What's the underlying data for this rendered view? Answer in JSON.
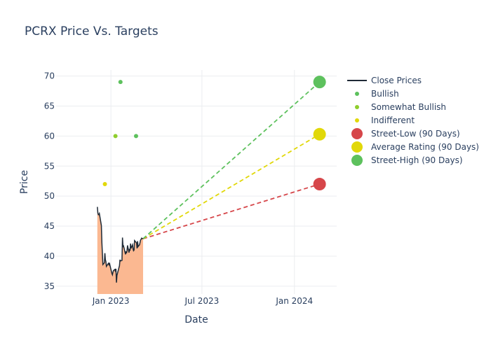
{
  "chart_data": {
    "type": "line",
    "title": "PCRX Price Vs. Targets",
    "xlabel": "Date",
    "ylabel": "Price",
    "xlim": [
      "2022-09-14",
      "2024-03-25"
    ],
    "ylim": [
      33.7,
      71.0
    ],
    "x_ticks": [
      {
        "date": "2023-01-01",
        "label": "Jan 2023"
      },
      {
        "date": "2023-07-01",
        "label": "Jul 2023"
      },
      {
        "date": "2024-01-01",
        "label": "Jan 2024"
      }
    ],
    "y_ticks": [
      35,
      40,
      45,
      50,
      55,
      60,
      65,
      70
    ],
    "grid": true,
    "legend_position": "right",
    "close_prices": {
      "name": "Close Prices",
      "line_color": "#1f2a36",
      "fill_color": "#fbb891",
      "dates": [
        "2022-12-05",
        "2022-12-06",
        "2022-12-07",
        "2022-12-08",
        "2022-12-09",
        "2022-12-12",
        "2022-12-13",
        "2022-12-14",
        "2022-12-15",
        "2022-12-16",
        "2022-12-19",
        "2022-12-20",
        "2022-12-21",
        "2022-12-22",
        "2022-12-23",
        "2022-12-27",
        "2022-12-28",
        "2022-12-29",
        "2022-12-30",
        "2023-01-03",
        "2023-01-04",
        "2023-01-05",
        "2023-01-06",
        "2023-01-09",
        "2023-01-10",
        "2023-01-11",
        "2023-01-12",
        "2023-01-13",
        "2023-01-17",
        "2023-01-18",
        "2023-01-19",
        "2023-01-20",
        "2023-01-23",
        "2023-01-24",
        "2023-01-25",
        "2023-01-26",
        "2023-01-27",
        "2023-01-30",
        "2023-01-31",
        "2023-02-01",
        "2023-02-02",
        "2023-02-03",
        "2023-02-06",
        "2023-02-07",
        "2023-02-08",
        "2023-02-09",
        "2023-02-10",
        "2023-02-13",
        "2023-02-14",
        "2023-02-15",
        "2023-02-16",
        "2023-02-17",
        "2023-02-21",
        "2023-02-22",
        "2023-02-23",
        "2023-02-24",
        "2023-02-27",
        "2023-02-28",
        "2023-03-01",
        "2023-03-02",
        "2023-03-03",
        "2023-03-06"
      ],
      "values": [
        48.2,
        47.2,
        46.9,
        46.9,
        47.1,
        45.6,
        45.1,
        42.3,
        40.5,
        38.6,
        38.9,
        40.5,
        39.4,
        39.1,
        38.3,
        38.8,
        38.6,
        38.9,
        38.5,
        37.1,
        36.9,
        37.3,
        37.6,
        37.8,
        37.4,
        37.9,
        35.6,
        36.8,
        38.1,
        38.4,
        39.4,
        39.2,
        39.3,
        43.1,
        41.6,
        41.7,
        41.4,
        40.3,
        40.8,
        40.5,
        40.9,
        41.8,
        40.6,
        41.2,
        40.9,
        42.1,
        41.3,
        41.9,
        41.2,
        40.9,
        41.0,
        42.6,
        42.2,
        41.3,
        42.5,
        41.6,
        41.9,
        42.3,
        42.7,
        42.8,
        43.0,
        42.9
      ]
    },
    "ratings": [
      {
        "name": "Bullish",
        "color": "#5dc15d",
        "points": [
          {
            "date": "2023-01-20",
            "value": 69
          },
          {
            "date": "2023-02-20",
            "value": 60
          }
        ]
      },
      {
        "name": "Somewhat Bullish",
        "color": "#8fce2d",
        "points": [
          {
            "date": "2023-01-10",
            "value": 60
          }
        ]
      },
      {
        "name": "Indifferent",
        "color": "#e1d809",
        "points": [
          {
            "date": "2022-12-20",
            "value": 52
          }
        ]
      }
    ],
    "targets": [
      {
        "name": "Street-Low (90 Days)",
        "color": "#d6464a",
        "start": {
          "date": "2023-03-06",
          "value": 42.9
        },
        "end": {
          "date": "2024-02-20",
          "value": 52
        }
      },
      {
        "name": "Average Rating (90 Days)",
        "color": "#e1d809",
        "start": {
          "date": "2023-03-06",
          "value": 42.9
        },
        "end": {
          "date": "2024-02-20",
          "value": 60.3
        }
      },
      {
        "name": "Street-High (90 Days)",
        "color": "#5dc15d",
        "start": {
          "date": "2023-03-06",
          "value": 42.9
        },
        "end": {
          "date": "2024-02-20",
          "value": 69
        }
      }
    ]
  }
}
